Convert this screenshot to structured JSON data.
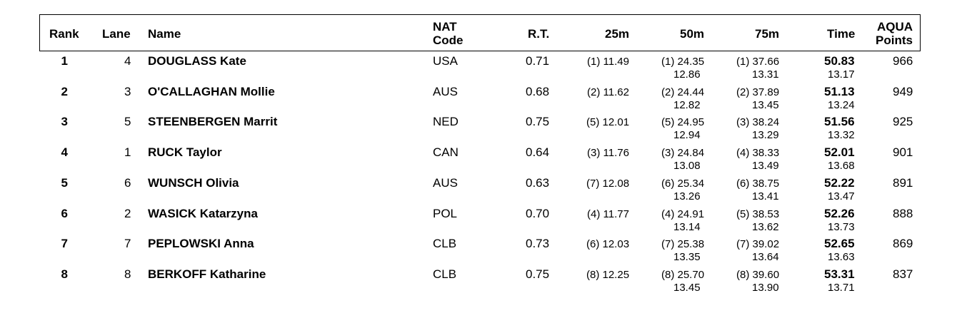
{
  "table": {
    "columns": [
      [
        "Rank"
      ],
      [
        "Lane"
      ],
      [
        "Name"
      ],
      [
        "NAT",
        "Code"
      ],
      [
        "R.T."
      ],
      [
        "25m"
      ],
      [
        "50m"
      ],
      [
        "75m"
      ],
      [
        "Time"
      ],
      [
        "AQUA",
        "Points"
      ]
    ],
    "rows": [
      {
        "rank": 1,
        "lane": 4,
        "name": "DOUGLASS Kate",
        "nat": "USA",
        "rt": "0.71",
        "r25": "(1) 11.49",
        "r50": "(1) 24.35",
        "r75": "(1) 37.66",
        "time": "50.83",
        "points": 966,
        "split50": "12.86",
        "split75": "13.31",
        "splitTime": "13.17"
      },
      {
        "rank": 2,
        "lane": 3,
        "name": "O'CALLAGHAN Mollie",
        "nat": "AUS",
        "rt": "0.68",
        "r25": "(2) 11.62",
        "r50": "(2) 24.44",
        "r75": "(2) 37.89",
        "time": "51.13",
        "points": 949,
        "split50": "12.82",
        "split75": "13.45",
        "splitTime": "13.24"
      },
      {
        "rank": 3,
        "lane": 5,
        "name": "STEENBERGEN Marrit",
        "nat": "NED",
        "rt": "0.75",
        "r25": "(5) 12.01",
        "r50": "(5) 24.95",
        "r75": "(3) 38.24",
        "time": "51.56",
        "points": 925,
        "split50": "12.94",
        "split75": "13.29",
        "splitTime": "13.32"
      },
      {
        "rank": 4,
        "lane": 1,
        "name": "RUCK Taylor",
        "nat": "CAN",
        "rt": "0.64",
        "r25": "(3) 11.76",
        "r50": "(3) 24.84",
        "r75": "(4) 38.33",
        "time": "52.01",
        "points": 901,
        "split50": "13.08",
        "split75": "13.49",
        "splitTime": "13.68"
      },
      {
        "rank": 5,
        "lane": 6,
        "name": "WUNSCH Olivia",
        "nat": "AUS",
        "rt": "0.63",
        "r25": "(7) 12.08",
        "r50": "(6) 25.34",
        "r75": "(6) 38.75",
        "time": "52.22",
        "points": 891,
        "split50": "13.26",
        "split75": "13.41",
        "splitTime": "13.47"
      },
      {
        "rank": 6,
        "lane": 2,
        "name": "WASICK Katarzyna",
        "nat": "POL",
        "rt": "0.70",
        "r25": "(4) 11.77",
        "r50": "(4) 24.91",
        "r75": "(5) 38.53",
        "time": "52.26",
        "points": 888,
        "split50": "13.14",
        "split75": "13.62",
        "splitTime": "13.73"
      },
      {
        "rank": 7,
        "lane": 7,
        "name": "PEPLOWSKI Anna",
        "nat": "CLB",
        "rt": "0.73",
        "r25": "(6) 12.03",
        "r50": "(7) 25.38",
        "r75": "(7) 39.02",
        "time": "52.65",
        "points": 869,
        "split50": "13.35",
        "split75": "13.64",
        "splitTime": "13.63"
      },
      {
        "rank": 8,
        "lane": 8,
        "name": "BERKOFF Katharine",
        "nat": "CLB",
        "rt": "0.75",
        "r25": "(8) 12.25",
        "r50": "(8) 25.70",
        "r75": "(8) 39.60",
        "time": "53.31",
        "points": 837,
        "split50": "13.45",
        "split75": "13.90",
        "splitTime": "13.71"
      }
    ]
  }
}
